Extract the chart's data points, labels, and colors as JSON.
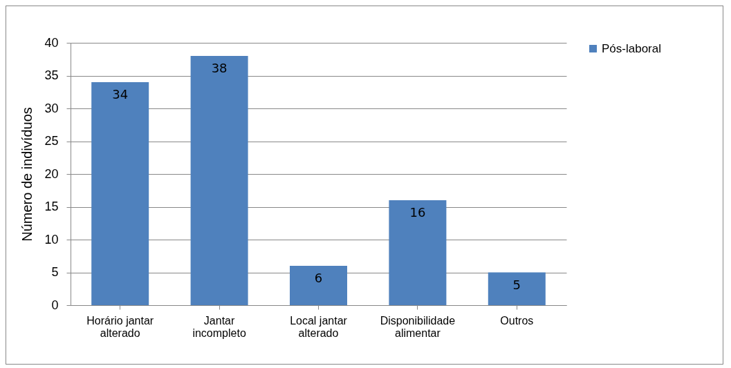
{
  "chart_data": {
    "type": "bar",
    "ylabel": "Número de indivíduos",
    "categories": [
      "Horário jantar alterado",
      "Jantar incompleto",
      "Local jantar alterado",
      "Disponibilidade alimentar",
      "Outros"
    ],
    "series": [
      {
        "name": "Pós-laboral",
        "color": "#4f81bd",
        "values": [
          34,
          38,
          6,
          16,
          5
        ]
      }
    ],
    "ylim": [
      0,
      40
    ],
    "yticks": [
      0,
      5,
      10,
      15,
      20,
      25,
      30,
      35,
      40
    ],
    "grid": "y",
    "legend": "right",
    "data_labels": true
  }
}
